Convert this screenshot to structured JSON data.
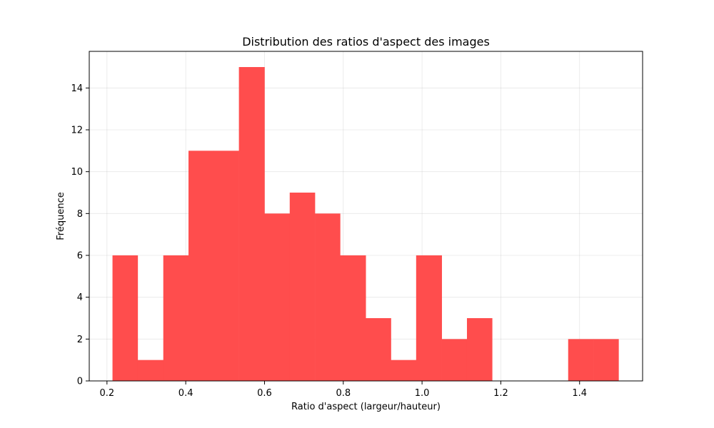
{
  "chart_data": {
    "type": "bar",
    "subtype": "histogram",
    "title": "Distribution des ratios d'aspect des images",
    "xlabel": "Ratio d'aspect (largeur/hauteur)",
    "ylabel": "Fréquence",
    "xlim": [
      0.155,
      1.56
    ],
    "ylim": [
      0,
      15.75
    ],
    "x_ticks": [
      0.2,
      0.4,
      0.6,
      0.8,
      1.0,
      1.2,
      1.4
    ],
    "x_tick_labels": [
      "0.2",
      "0.4",
      "0.6",
      "0.8",
      "1.0",
      "1.2",
      "1.4"
    ],
    "y_ticks": [
      0,
      2,
      4,
      6,
      8,
      10,
      12,
      14
    ],
    "y_tick_labels": [
      "0",
      "2",
      "4",
      "6",
      "8",
      "10",
      "12",
      "14"
    ],
    "grid": true,
    "bar_color": "#ff4d4d",
    "bins": [
      {
        "start": 0.214,
        "end": 0.278,
        "count": 6
      },
      {
        "start": 0.278,
        "end": 0.343,
        "count": 1
      },
      {
        "start": 0.343,
        "end": 0.407,
        "count": 6
      },
      {
        "start": 0.407,
        "end": 0.471,
        "count": 11
      },
      {
        "start": 0.471,
        "end": 0.535,
        "count": 11
      },
      {
        "start": 0.535,
        "end": 0.6,
        "count": 15
      },
      {
        "start": 0.6,
        "end": 0.664,
        "count": 8
      },
      {
        "start": 0.664,
        "end": 0.728,
        "count": 9
      },
      {
        "start": 0.728,
        "end": 0.792,
        "count": 8
      },
      {
        "start": 0.792,
        "end": 0.857,
        "count": 6
      },
      {
        "start": 0.857,
        "end": 0.921,
        "count": 3
      },
      {
        "start": 0.921,
        "end": 0.985,
        "count": 1
      },
      {
        "start": 0.985,
        "end": 1.05,
        "count": 6
      },
      {
        "start": 1.05,
        "end": 1.114,
        "count": 2
      },
      {
        "start": 1.114,
        "end": 1.178,
        "count": 3
      },
      {
        "start": 1.178,
        "end": 1.242,
        "count": 0
      },
      {
        "start": 1.242,
        "end": 1.307,
        "count": 0
      },
      {
        "start": 1.307,
        "end": 1.371,
        "count": 0
      },
      {
        "start": 1.371,
        "end": 1.435,
        "count": 2
      },
      {
        "start": 1.435,
        "end": 1.499,
        "count": 2
      }
    ]
  }
}
